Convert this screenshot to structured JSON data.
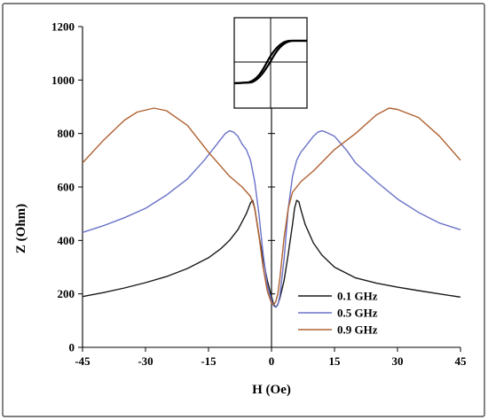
{
  "chart_data": {
    "type": "line",
    "xlabel": "H (Oe)",
    "ylabel": "Z (Ohm)",
    "xlim": [
      -45,
      45
    ],
    "ylim": [
      0,
      1200
    ],
    "xticks": [
      -45,
      -30,
      -15,
      0,
      15,
      30,
      45
    ],
    "yticks": [
      0,
      200,
      400,
      600,
      800,
      1000,
      1200
    ],
    "grid": false,
    "legend_position": "bottom-right",
    "series": [
      {
        "name": "0.1 GHz",
        "color": "#1a1a1a",
        "x": [
          -45,
          -40,
          -35,
          -30,
          -25,
          -20,
          -15,
          -12,
          -10,
          -8,
          -7,
          -6,
          -5,
          -4.5,
          -4,
          -3,
          -2,
          -1,
          0,
          0.5,
          1,
          1.5,
          2,
          3,
          4,
          5,
          5.5,
          6,
          6.5,
          7,
          8,
          10,
          12,
          15,
          20,
          25,
          30,
          35,
          40,
          45
        ],
        "y": [
          190,
          205,
          222,
          242,
          265,
          295,
          335,
          370,
          400,
          440,
          470,
          500,
          540,
          550,
          520,
          420,
          330,
          250,
          190,
          160,
          150,
          160,
          185,
          250,
          350,
          460,
          520,
          550,
          545,
          515,
          460,
          390,
          345,
          300,
          260,
          240,
          225,
          212,
          200,
          188
        ]
      },
      {
        "name": "0.5 GHz",
        "color": "#6b72c8",
        "x": [
          -45,
          -40,
          -35,
          -30,
          -25,
          -20,
          -16,
          -13,
          -11,
          -10,
          -9,
          -8,
          -7,
          -6,
          -5,
          -4,
          -3,
          -2,
          -1,
          0,
          0.5,
          1,
          1.5,
          2,
          3,
          4,
          5,
          6,
          7,
          8,
          9,
          10,
          11,
          12,
          13,
          15,
          18,
          20,
          25,
          30,
          35,
          40,
          45
        ],
        "y": [
          430,
          455,
          485,
          520,
          570,
          630,
          700,
          760,
          800,
          810,
          805,
          790,
          760,
          740,
          700,
          620,
          500,
          350,
          230,
          175,
          155,
          150,
          158,
          195,
          330,
          520,
          640,
          700,
          730,
          750,
          770,
          790,
          805,
          810,
          805,
          790,
          735,
          690,
          620,
          555,
          505,
          465,
          440
        ]
      },
      {
        "name": "0.9 GHz",
        "color": "#b06030",
        "x": [
          -45,
          -40,
          -35,
          -32,
          -28,
          -25,
          -20,
          -15,
          -10,
          -7,
          -5,
          -4,
          -3,
          -2,
          -1,
          0,
          0.5,
          1,
          1.5,
          2,
          3,
          4,
          5,
          7,
          10,
          15,
          20,
          25,
          28,
          30,
          35,
          40,
          45
        ],
        "y": [
          690,
          775,
          850,
          880,
          895,
          885,
          830,
          730,
          640,
          600,
          565,
          520,
          420,
          300,
          210,
          165,
          160,
          170,
          200,
          260,
          410,
          520,
          580,
          620,
          660,
          740,
          800,
          870,
          895,
          890,
          860,
          790,
          700
        ]
      }
    ],
    "inset": {
      "type": "hysteresis-loop"
    }
  }
}
